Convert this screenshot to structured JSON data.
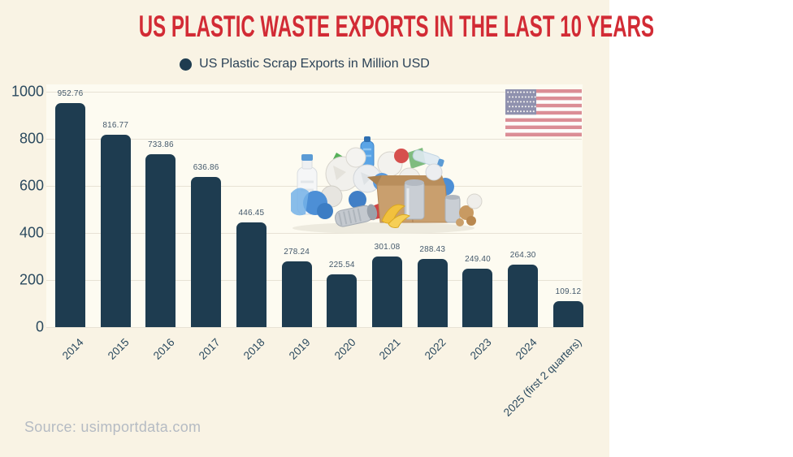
{
  "title": "US PLASTIC WASTE EXPORTS IN THE LAST 10 YEARS",
  "legend": {
    "marker_icon": "circle-icon",
    "label": "US Plastic Scrap Exports in Million USD"
  },
  "source": "Source: usimportdata.com",
  "decor": {
    "flag_icon": "us-flag-icon",
    "illustration": "plastic-waste-pile-illustration"
  },
  "colors": {
    "background": "#f9f3e4",
    "plot_background": "#fdfbf1",
    "bar": "#1e3c50",
    "title": "#d22b35",
    "axis_text": "#2b4a5f",
    "value_label": "#44596b",
    "gridline": "#e7e2d5",
    "source_text": "#b5bbc3",
    "flag_red": "#db8e96",
    "flag_canton": "#8f91ae"
  },
  "chart_data": {
    "type": "bar",
    "title": "US PLASTIC WASTE EXPORTS IN THE LAST 10 YEARS",
    "legend": [
      "US Plastic Scrap Exports in Million USD"
    ],
    "legend_position": "top",
    "grid": true,
    "xlabel": "",
    "ylabel": "",
    "ylim": [
      0,
      1000
    ],
    "yticks": [
      0,
      200,
      400,
      600,
      800,
      1000
    ],
    "categories": [
      "2014",
      "2015",
      "2016",
      "2017",
      "2018",
      "2019",
      "2020",
      "2021",
      "2022",
      "2023",
      "2024",
      "2025 (first 2 quarters)"
    ],
    "values": [
      952.76,
      816.77,
      733.86,
      636.86,
      446.45,
      278.24,
      225.54,
      301.08,
      288.43,
      249.4,
      264.3,
      109.12
    ],
    "value_labels": [
      "952.76",
      "816.77",
      "733.86",
      "636.86",
      "446.45",
      "278.24",
      "225.54",
      "301.08",
      "288.43",
      "249.40",
      "264.30",
      "109.12"
    ]
  }
}
